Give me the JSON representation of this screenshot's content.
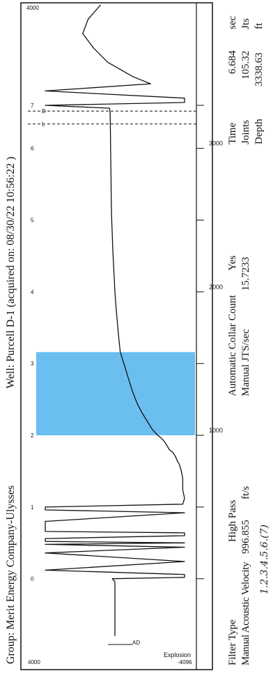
{
  "header": {
    "group": "Group: Merit Energy Company-Ulysses",
    "well": "Well: Purcell D-1 (acquired on: 08/30/22 10:56:22 )"
  },
  "chart_data": {
    "type": "line",
    "title": "",
    "xlabel": "",
    "ylabel": "",
    "x_ticks": [
      {
        "value": 0,
        "label": "",
        "tag": "0"
      },
      {
        "value": 500,
        "label": "",
        "tag": "1"
      },
      {
        "value": 1000,
        "label": "1000",
        "tag": "2"
      },
      {
        "value": 1500,
        "label": "",
        "tag": "3"
      },
      {
        "value": 2000,
        "label": "2000",
        "tag": "4"
      },
      {
        "value": 2500,
        "label": "",
        "tag": "5"
      },
      {
        "value": 3000,
        "label": "3000",
        "tag": "6"
      },
      {
        "value": 3300,
        "label": "",
        "tag": "7"
      }
    ],
    "xlim": [
      -400,
      4000
    ],
    "edge_labels": {
      "left_top": "4000",
      "left_bottom": "-4096",
      "right_top": "4000"
    },
    "side_labels": {
      "explosion": "Explosion",
      "ad_marker": "AD"
    },
    "marker_labels": [
      "0",
      "1",
      "2",
      "3",
      "4",
      "5",
      "6",
      "7",
      "L",
      "D"
    ],
    "highlight": {
      "from": 1000,
      "to": 1580,
      "color": "#5ab8ee"
    },
    "series": [
      {
        "name": "",
        "x": [
          -400,
          -200,
          -20,
          0,
          10,
          30,
          60,
          120,
          180,
          220,
          240,
          250,
          260,
          280,
          300,
          320,
          330,
          400,
          460,
          480,
          500,
          520,
          560,
          620,
          700,
          760,
          800,
          820,
          850,
          880,
          900,
          930,
          960,
          980,
          1000,
          1040,
          1100,
          1160,
          1220,
          1300,
          1400,
          1500,
          1580,
          1700,
          1800,
          1900,
          2000,
          2100,
          2200,
          2300,
          2400,
          2500,
          2600,
          2700,
          2800,
          2900,
          3000,
          3100,
          3200,
          3250,
          3280,
          3300,
          3320,
          3350,
          3400,
          3450,
          3500,
          3550,
          3600,
          3700,
          3800,
          3900,
          4000
        ],
        "y": [
          0,
          0,
          0,
          150,
          -3900,
          -3900,
          3900,
          -3900,
          3900,
          -3900,
          3900,
          -3900,
          3900,
          3900,
          -3900,
          -3900,
          3900,
          3900,
          -3900,
          3900,
          3900,
          -3800,
          -3900,
          -3800,
          -3800,
          -3700,
          -3600,
          -3500,
          -3400,
          -3250,
          -3050,
          -2900,
          -2750,
          -2600,
          -2400,
          -2100,
          -1800,
          -1500,
          -1250,
          -1000,
          -750,
          -500,
          -300,
          -200,
          -130,
          -60,
          0,
          40,
          80,
          120,
          150,
          180,
          200,
          210,
          220,
          230,
          240,
          250,
          260,
          270,
          300,
          3900,
          -3900,
          -3900,
          3900,
          -2000,
          -1000,
          -300,
          400,
          1200,
          1800,
          1500,
          800
        ]
      }
    ]
  },
  "filter": {
    "type_label": "Filter Type",
    "type_value": "High Pass",
    "velocity_label": "Manual Acoustic Velocity",
    "velocity_value": "996.855",
    "velocity_unit": "ft/s"
  },
  "collar": {
    "auto_label": "Automatic Collar Count",
    "auto_value": "Yes",
    "jts_label": "Manual JTS/sec",
    "jts_value": "15.7233"
  },
  "results": {
    "time_label": "Time",
    "time_value": "6.684",
    "time_unit": "sec",
    "joints_label": "Joints",
    "joints_value": "105.32",
    "joints_unit": "Jts",
    "depth_label": "Depth",
    "depth_value": "3338.63",
    "depth_unit": "ft"
  },
  "footer": {
    "handwriting": "1.2.3.4.5.6.(7)"
  }
}
